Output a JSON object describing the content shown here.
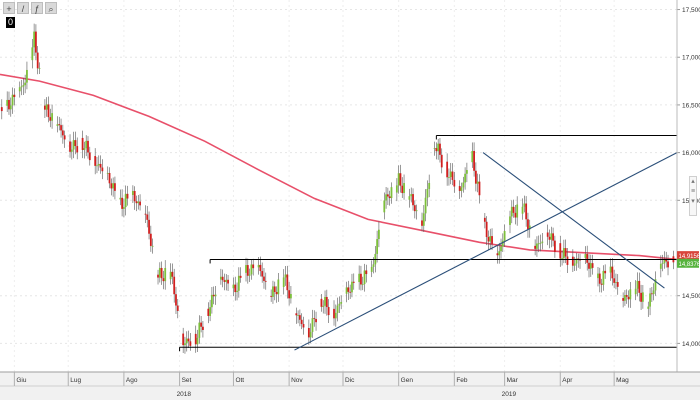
{
  "toolbar": {
    "buttons": [
      {
        "name": "crosshair-tool-button",
        "glyph": "+"
      },
      {
        "name": "draw-line-tool-button",
        "glyph": "/"
      },
      {
        "name": "fib-tool-button",
        "glyph": "ƒ"
      },
      {
        "name": "zoom-tool-button",
        "glyph": "⌕"
      }
    ],
    "badge": "0"
  },
  "colors": {
    "bull": "#7dbf3b",
    "bear": "#d11f1f",
    "ma": "#e8506a",
    "trendline": "#2b4f79",
    "level": "#000000",
    "price_tag_green": "#57b33e",
    "price_tag_red": "#d8453c"
  },
  "chart_data": {
    "type": "candlestick",
    "ylim": [
      13.7,
      17.6
    ],
    "y_ticks": [
      {
        "value": 17.5,
        "label": "17,5000"
      },
      {
        "value": 17.0,
        "label": "17,0000"
      },
      {
        "value": 16.5,
        "label": "16,5000"
      },
      {
        "value": 16.0,
        "label": "16,0000"
      },
      {
        "value": 15.5,
        "label": "15,5000"
      },
      {
        "value": 14.5,
        "label": "14,5000"
      },
      {
        "value": 14.0,
        "label": "14,0000"
      }
    ],
    "x_months": [
      {
        "label": "Giu",
        "date": "2018-06-01"
      },
      {
        "label": "Lug",
        "date": "2018-07-01"
      },
      {
        "label": "Ago",
        "date": "2018-08-01"
      },
      {
        "label": "Set",
        "date": "2018-09-01"
      },
      {
        "label": "Ott",
        "date": "2018-10-01"
      },
      {
        "label": "Nov",
        "date": "2018-11-01"
      },
      {
        "label": "Dic",
        "date": "2018-12-01"
      },
      {
        "label": "Gen",
        "date": "2019-01-01"
      },
      {
        "label": "Feb",
        "date": "2019-02-01"
      },
      {
        "label": "Mar",
        "date": "2019-03-01"
      },
      {
        "label": "Apr",
        "date": "2019-04-01"
      },
      {
        "label": "Mag",
        "date": "2019-05-01"
      }
    ],
    "x_years": [
      {
        "label": "2018",
        "date": "2018-09-01"
      },
      {
        "label": "2019",
        "date": "2019-03-01"
      }
    ],
    "x_range": [
      "2018-05-24",
      "2019-06-05"
    ],
    "closes": [
      [
        "2018-05-24",
        16.4
      ],
      [
        "2018-05-31",
        16.55
      ],
      [
        "2018-06-07",
        16.75
      ],
      [
        "2018-06-12",
        17.2
      ],
      [
        "2018-06-18",
        16.45
      ],
      [
        "2018-06-25",
        16.3
      ],
      [
        "2018-07-02",
        16.05
      ],
      [
        "2018-07-09",
        16.1
      ],
      [
        "2018-07-16",
        15.9
      ],
      [
        "2018-07-23",
        15.75
      ],
      [
        "2018-07-30",
        15.45
      ],
      [
        "2018-08-06",
        15.55
      ],
      [
        "2018-08-13",
        15.35
      ],
      [
        "2018-08-20",
        14.7
      ],
      [
        "2018-08-27",
        14.75
      ],
      [
        "2018-09-03",
        14.0
      ],
      [
        "2018-09-10",
        14.05
      ],
      [
        "2018-09-17",
        14.35
      ],
      [
        "2018-09-24",
        14.7
      ],
      [
        "2018-10-01",
        14.55
      ],
      [
        "2018-10-08",
        14.75
      ],
      [
        "2018-10-15",
        14.8
      ],
      [
        "2018-10-22",
        14.5
      ],
      [
        "2018-10-29",
        14.7
      ],
      [
        "2018-11-05",
        14.3
      ],
      [
        "2018-11-12",
        14.1
      ],
      [
        "2018-11-19",
        14.45
      ],
      [
        "2018-11-26",
        14.3
      ],
      [
        "2018-12-03",
        14.55
      ],
      [
        "2018-12-10",
        14.65
      ],
      [
        "2018-12-17",
        14.75
      ],
      [
        "2018-12-24",
        15.5
      ],
      [
        "2019-01-01",
        15.7
      ],
      [
        "2019-01-07",
        15.55
      ],
      [
        "2019-01-14",
        15.25
      ],
      [
        "2019-01-21",
        16.1
      ],
      [
        "2019-01-28",
        15.8
      ],
      [
        "2019-02-04",
        15.6
      ],
      [
        "2019-02-11",
        15.95
      ],
      [
        "2019-02-18",
        15.2
      ],
      [
        "2019-02-25",
        14.9
      ],
      [
        "2019-03-04",
        15.35
      ],
      [
        "2019-03-11",
        15.45
      ],
      [
        "2019-03-18",
        15.0
      ],
      [
        "2019-03-25",
        15.15
      ],
      [
        "2019-04-01",
        14.95
      ],
      [
        "2019-04-08",
        14.85
      ],
      [
        "2019-04-15",
        14.9
      ],
      [
        "2019-04-22",
        14.65
      ],
      [
        "2019-04-29",
        14.75
      ],
      [
        "2019-05-06",
        14.45
      ],
      [
        "2019-05-13",
        14.6
      ],
      [
        "2019-05-20",
        14.4
      ],
      [
        "2019-05-27",
        14.85
      ],
      [
        "2019-06-03",
        14.85
      ]
    ],
    "moving_average": [
      [
        "2018-05-24",
        16.82
      ],
      [
        "2018-06-15",
        16.75
      ],
      [
        "2018-07-15",
        16.6
      ],
      [
        "2018-08-15",
        16.38
      ],
      [
        "2018-09-15",
        16.12
      ],
      [
        "2018-10-15",
        15.82
      ],
      [
        "2018-11-15",
        15.52
      ],
      [
        "2018-12-15",
        15.3
      ],
      [
        "2019-01-15",
        15.18
      ],
      [
        "2019-02-15",
        15.06
      ],
      [
        "2019-03-15",
        14.98
      ],
      [
        "2019-04-15",
        14.95
      ],
      [
        "2019-05-15",
        14.92
      ],
      [
        "2019-06-05",
        14.88
      ]
    ],
    "horizontal_levels": [
      {
        "name": "upper-resistance",
        "y": 16.18,
        "from": "2019-01-22",
        "to": "2019-06-05"
      },
      {
        "name": "range-top",
        "y": 14.88,
        "from": "2018-09-18",
        "to": "2019-06-05"
      },
      {
        "name": "range-bottom",
        "y": 13.96,
        "from": "2018-09-01",
        "to": "2019-06-05"
      }
    ],
    "trendlines": [
      {
        "name": "rising-trendline",
        "from": [
          "2018-11-04",
          13.93
        ],
        "to": [
          "2019-06-05",
          16.0
        ]
      },
      {
        "name": "falling-trendline",
        "from": [
          "2019-02-17",
          16.0
        ],
        "to": [
          "2019-05-29",
          14.58
        ]
      }
    ],
    "last_price": {
      "label": "14,8376",
      "value": 14.84,
      "color_key": "price_tag_green"
    },
    "reference_price": {
      "label": "14,9156",
      "value": 14.92,
      "color_key": "price_tag_red"
    }
  }
}
